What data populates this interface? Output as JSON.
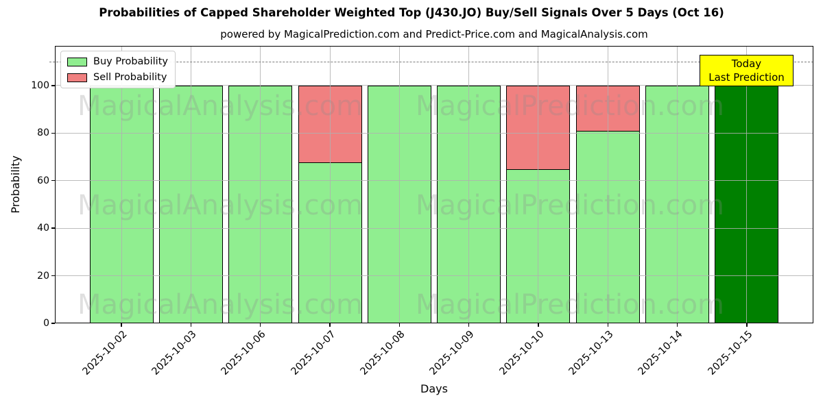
{
  "figure": {
    "title": "Probabilities of Capped Shareholder Weighted Top (J430.JO) Buy/Sell Signals Over 5 Days (Oct 16)",
    "subtitle": "powered by MagicalPrediction.com and Predict-Price.com and MagicalAnalysis.com"
  },
  "chart_data": {
    "type": "bar",
    "stacked": true,
    "title": "Probabilities of Capped Shareholder Weighted Top (J430.JO) Buy/Sell Signals Over 5 Days (Oct 16)",
    "subtitle": "powered by MagicalPrediction.com and Predict-Price.com and MagicalAnalysis.com",
    "xlabel": "Days",
    "ylabel": "Probability",
    "categories": [
      "2025-10-02",
      "2025-10-03",
      "2025-10-06",
      "2025-10-07",
      "2025-10-08",
      "2025-10-09",
      "2025-10-10",
      "2025-10-13",
      "2025-10-14",
      "2025-10-15"
    ],
    "series": [
      {
        "name": "Buy Probability",
        "color": "#90ee90",
        "values": [
          100,
          100,
          100,
          68,
          100,
          100,
          65,
          81,
          100,
          100
        ]
      },
      {
        "name": "Sell Probability",
        "color": "#f08080",
        "values": [
          0,
          0,
          0,
          32,
          0,
          0,
          35,
          19,
          0,
          0
        ]
      }
    ],
    "today_bar": {
      "category": "2025-10-15",
      "index": 9,
      "color": "#008000"
    },
    "yticks": [
      0,
      20,
      40,
      60,
      80,
      100
    ],
    "ylim": [
      0,
      116.7
    ],
    "dashed_line_y": 110,
    "grid": true,
    "legend_position": "upper left",
    "bar_edge_color": "#000000",
    "dashed_line_color": "#7a7a7a"
  },
  "legend": {
    "items": [
      {
        "label": "Buy Probability",
        "color": "#90ee90"
      },
      {
        "label": "Sell Probability",
        "color": "#f08080"
      }
    ]
  },
  "annotation": {
    "line1": "Today",
    "line2": "Last Prediction",
    "bg_color": "#ffff00"
  },
  "watermarks": {
    "left_text": "MagicalAnalysis.com",
    "right_text": "MagicalPrediction.com",
    "rows": 3
  }
}
